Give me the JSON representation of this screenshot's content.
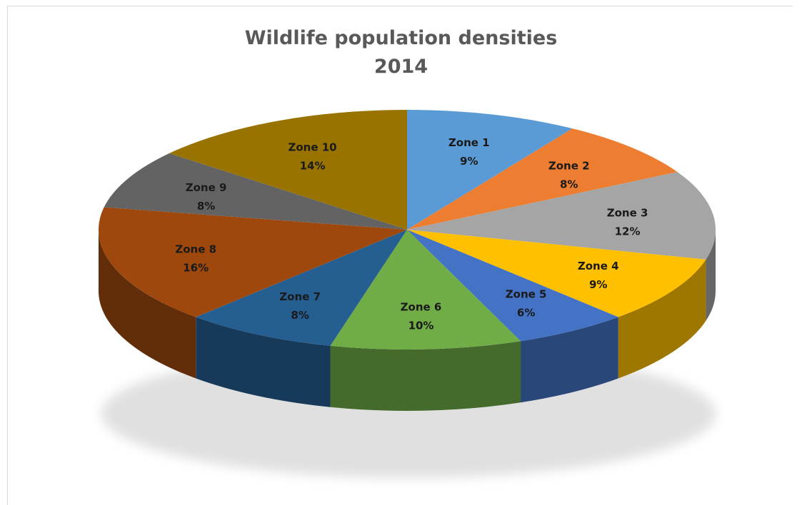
{
  "chart_data": {
    "type": "pie",
    "title": "Wildlife population densities",
    "subtitle": "2014",
    "categories": [
      "Zone 1",
      "Zone 2",
      "Zone 3",
      "Zone 4",
      "Zone 5",
      "Zone 6",
      "Zone 7",
      "Zone 8",
      "Zone 9",
      "Zone 10"
    ],
    "values": [
      9,
      8,
      12,
      9,
      6,
      10,
      8,
      16,
      8,
      14
    ],
    "value_labels": [
      "9%",
      "8%",
      "12%",
      "9%",
      "6%",
      "10%",
      "8%",
      "16%",
      "8%",
      "14%"
    ],
    "colors": [
      "#5b9bd5",
      "#ed7d31",
      "#a5a5a5",
      "#ffc000",
      "#4472c4",
      "#70ad47",
      "#255e91",
      "#9e480e",
      "#636363",
      "#997300"
    ],
    "style": "3d",
    "legend": "none",
    "data_labels": "category and percentage"
  }
}
